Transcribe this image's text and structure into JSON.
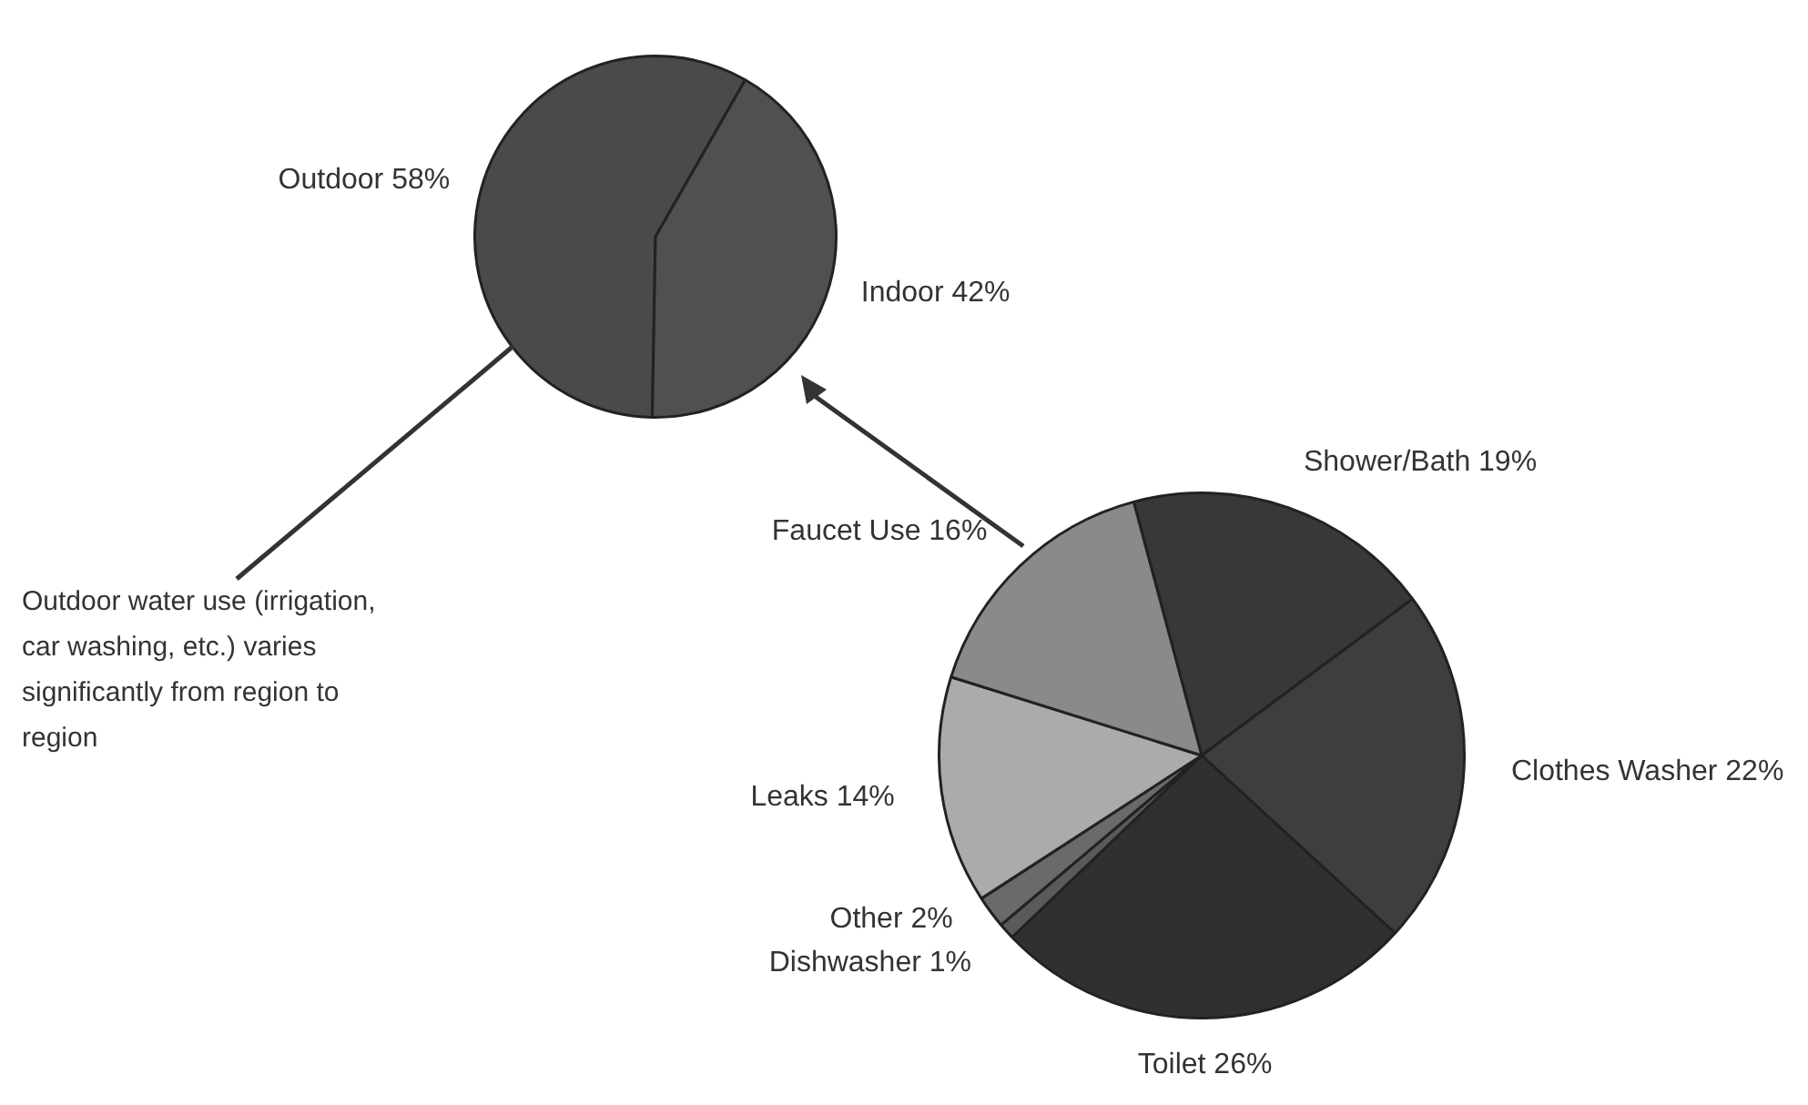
{
  "chart_data": [
    {
      "type": "pie",
      "categories": [
        "Outdoor",
        "Indoor"
      ],
      "values": [
        58,
        42
      ],
      "colors": [
        "#4a4a4a",
        "#505050"
      ],
      "value_labels": [
        "58%",
        "42%"
      ],
      "annotations": [
        "Outdoor water use (irrigation, car washing, etc.) varies significantly from region to region"
      ]
    },
    {
      "type": "pie",
      "categories": [
        "Shower/Bath",
        "Clothes Washer",
        "Toilet",
        "Dishwasher",
        "Other",
        "Leaks",
        "Faucet Use"
      ],
      "values": [
        19,
        22,
        26,
        1,
        2,
        14,
        16
      ],
      "colors": [
        "#383838",
        "#3e3e3e",
        "#303030",
        "#5a5a5a",
        "#6a6a6a",
        "#ababab",
        "#8a8a8a"
      ],
      "value_labels": [
        "19%",
        "22%",
        "26%",
        "1%",
        "2%",
        "14%",
        "16%"
      ]
    }
  ]
}
